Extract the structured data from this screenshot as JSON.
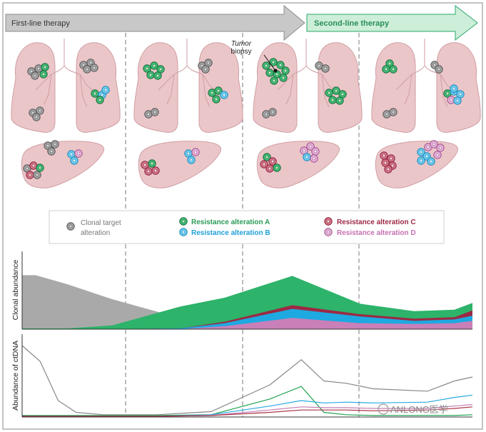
{
  "therapy": {
    "first_line": "First-line therapy",
    "second_line": "Second-line therapy"
  },
  "annotation": {
    "tumor": "Tumor",
    "biopsy": "biopsy"
  },
  "legend": {
    "clonal_target_line1": "Clonal target",
    "clonal_target_line2": "alteration",
    "resistance_a": "Resistance alteration A",
    "resistance_b": "Resistance alteration B",
    "resistance_c": "Resistance alteration C",
    "resistance_d": "Resistance alteration D"
  },
  "axes": {
    "clonal_abundance": "Clonal abundance",
    "ctdna_abundance": "Abundance of ctDNA"
  },
  "watermark": "ANLONG医学",
  "colors": {
    "gray": "#a9a9a9",
    "green": "#2db36a",
    "blue": "#1ea9e1",
    "red": "#9c2943",
    "pink": "#c97fb8",
    "organ": "#ebc6c9",
    "arrow_gray": "#c7c7c7",
    "arrow_green": "#cdeed9"
  },
  "chart_data": [
    {
      "type": "area",
      "title": "Clonal abundance",
      "x": [
        0,
        0.03,
        0.1,
        0.2,
        0.35,
        0.45,
        0.6,
        0.75,
        0.87,
        0.96,
        1.0
      ],
      "series": [
        {
          "name": "Clonal target alteration",
          "values": [
            0.72,
            0.72,
            0.6,
            0.4,
            0.15,
            0.07,
            0.04,
            0.02,
            0.02,
            0.02,
            0.02
          ]
        },
        {
          "name": "Resistance alteration A",
          "values": [
            0.01,
            0.01,
            0.01,
            0.05,
            0.3,
            0.42,
            0.71,
            0.34,
            0.24,
            0.26,
            0.35
          ]
        },
        {
          "name": "Resistance alteration C",
          "values": [
            0,
            0,
            0,
            0,
            0.01,
            0.1,
            0.32,
            0.2,
            0.14,
            0.16,
            0.25
          ]
        },
        {
          "name": "Resistance alteration B",
          "values": [
            0,
            0,
            0,
            0,
            0.01,
            0.08,
            0.27,
            0.17,
            0.11,
            0.13,
            0.18
          ]
        },
        {
          "name": "Resistance alteration D",
          "values": [
            0,
            0,
            0,
            0,
            0,
            0.04,
            0.15,
            0.08,
            0.07,
            0.08,
            0.11
          ]
        }
      ]
    },
    {
      "type": "line",
      "title": "Abundance of ctDNA",
      "x": [
        0,
        0.04,
        0.08,
        0.12,
        0.18,
        0.3,
        0.42,
        0.55,
        0.62,
        0.67,
        0.72,
        0.78,
        0.9,
        0.96,
        1.0
      ],
      "series": [
        {
          "name": "Total",
          "values": [
            0.9,
            0.7,
            0.2,
            0.05,
            0.02,
            0.02,
            0.06,
            0.4,
            0.72,
            0.45,
            0.42,
            0.35,
            0.32,
            0.45,
            0.5
          ]
        },
        {
          "name": "Resistance alteration A",
          "values": [
            0.01,
            0.01,
            0.01,
            0.01,
            0.01,
            0.01,
            0.02,
            0.22,
            0.38,
            0.05,
            0.02,
            0.01,
            0.01,
            0.01,
            0.02
          ]
        },
        {
          "name": "Resistance alteration B",
          "values": [
            0,
            0,
            0,
            0,
            0,
            0,
            0.02,
            0.13,
            0.2,
            0.17,
            0.18,
            0.17,
            0.18,
            0.24,
            0.27
          ]
        },
        {
          "name": "Resistance alteration D",
          "values": [
            0,
            0,
            0,
            0,
            0,
            0,
            0.01,
            0.08,
            0.12,
            0.11,
            0.11,
            0.1,
            0.1,
            0.13,
            0.15
          ]
        },
        {
          "name": "Resistance alteration C",
          "values": [
            0,
            0,
            0,
            0,
            0,
            0,
            0.01,
            0.05,
            0.08,
            0.08,
            0.08,
            0.07,
            0.08,
            0.1,
            0.12
          ]
        }
      ]
    }
  ]
}
